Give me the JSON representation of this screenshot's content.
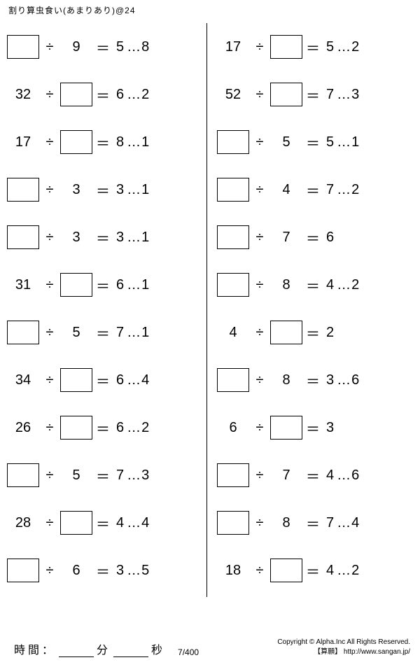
{
  "header": "割り算虫食い(あまりあり)@24",
  "divide_sym": "÷",
  "equals_sym": "＝",
  "dots_sym": "…",
  "left": [
    {
      "a": "",
      "b": "9",
      "q": "5",
      "r": "8",
      "blank": "a"
    },
    {
      "a": "32",
      "b": "",
      "q": "6",
      "r": "2",
      "blank": "b"
    },
    {
      "a": "17",
      "b": "",
      "q": "8",
      "r": "1",
      "blank": "b"
    },
    {
      "a": "",
      "b": "3",
      "q": "3",
      "r": "1",
      "blank": "a"
    },
    {
      "a": "",
      "b": "3",
      "q": "3",
      "r": "1",
      "blank": "a"
    },
    {
      "a": "31",
      "b": "",
      "q": "6",
      "r": "1",
      "blank": "b"
    },
    {
      "a": "",
      "b": "5",
      "q": "7",
      "r": "1",
      "blank": "a"
    },
    {
      "a": "34",
      "b": "",
      "q": "6",
      "r": "4",
      "blank": "b"
    },
    {
      "a": "26",
      "b": "",
      "q": "6",
      "r": "2",
      "blank": "b"
    },
    {
      "a": "",
      "b": "5",
      "q": "7",
      "r": "3",
      "blank": "a"
    },
    {
      "a": "28",
      "b": "",
      "q": "4",
      "r": "4",
      "blank": "b"
    },
    {
      "a": "",
      "b": "6",
      "q": "3",
      "r": "5",
      "blank": "a"
    }
  ],
  "right": [
    {
      "a": "17",
      "b": "",
      "q": "5",
      "r": "2",
      "blank": "b"
    },
    {
      "a": "52",
      "b": "",
      "q": "7",
      "r": "3",
      "blank": "b"
    },
    {
      "a": "",
      "b": "5",
      "q": "5",
      "r": "1",
      "blank": "a"
    },
    {
      "a": "",
      "b": "4",
      "q": "7",
      "r": "2",
      "blank": "a"
    },
    {
      "a": "",
      "b": "7",
      "q": "6",
      "r": "",
      "blank": "a"
    },
    {
      "a": "",
      "b": "8",
      "q": "4",
      "r": "2",
      "blank": "a"
    },
    {
      "a": "4",
      "b": "",
      "q": "2",
      "r": "",
      "blank": "b"
    },
    {
      "a": "",
      "b": "8",
      "q": "3",
      "r": "6",
      "blank": "a"
    },
    {
      "a": "6",
      "b": "",
      "q": "3",
      "r": "",
      "blank": "b"
    },
    {
      "a": "",
      "b": "7",
      "q": "4",
      "r": "6",
      "blank": "a"
    },
    {
      "a": "",
      "b": "8",
      "q": "7",
      "r": "4",
      "blank": "a"
    },
    {
      "a": "18",
      "b": "",
      "q": "4",
      "r": "2",
      "blank": "b"
    }
  ],
  "footer": {
    "time_label": "時間：",
    "min_label": "分",
    "sec_label": "秒",
    "page": "7/400",
    "copyright1": "Copyright © Alpha.Inc All Rights Reserved.",
    "copyright2": "【算願】 http://www.sangan.jp/"
  }
}
